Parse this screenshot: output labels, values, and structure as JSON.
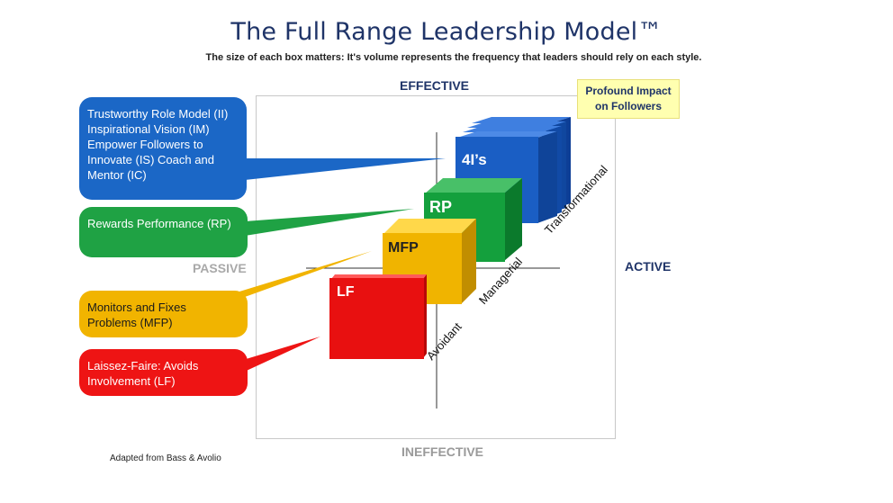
{
  "title": "The Full Range Leadership Model™",
  "subtitle": "The size of each box matters: It's volume represents the frequency that leaders should rely on each style.",
  "axes": {
    "top": "EFFECTIVE",
    "bottom": "INEFFECTIVE",
    "left": "PASSIVE",
    "right": "ACTIVE"
  },
  "impact_note": "Profound Impact on Followers",
  "depth_labels": [
    "Avoidant",
    "Managerial",
    "Transformational"
  ],
  "boxes": [
    {
      "label": "4I’s",
      "color": "#1a5ec4"
    },
    {
      "label": "RP",
      "color": "#14a03d"
    },
    {
      "label": "MFP",
      "color": "#f0b400"
    },
    {
      "label": "LF",
      "color": "#e81010"
    }
  ],
  "callouts": [
    {
      "text": "Trustworthy Role Model (II) Inspirational Vision (IM) Empower Followers to Innovate (IS) Coach and Mentor (IC)",
      "color": "#1b67c6"
    },
    {
      "text": "Rewards Performance (RP)",
      "color": "#1fa244"
    },
    {
      "text": "Monitors and Fixes Problems (MFP)",
      "color": "#f1b400"
    },
    {
      "text": "Laissez-Faire: Avoids Involvement (LF)",
      "color": "#ee1414"
    }
  ],
  "source": "Adapted from Bass & Avolio"
}
